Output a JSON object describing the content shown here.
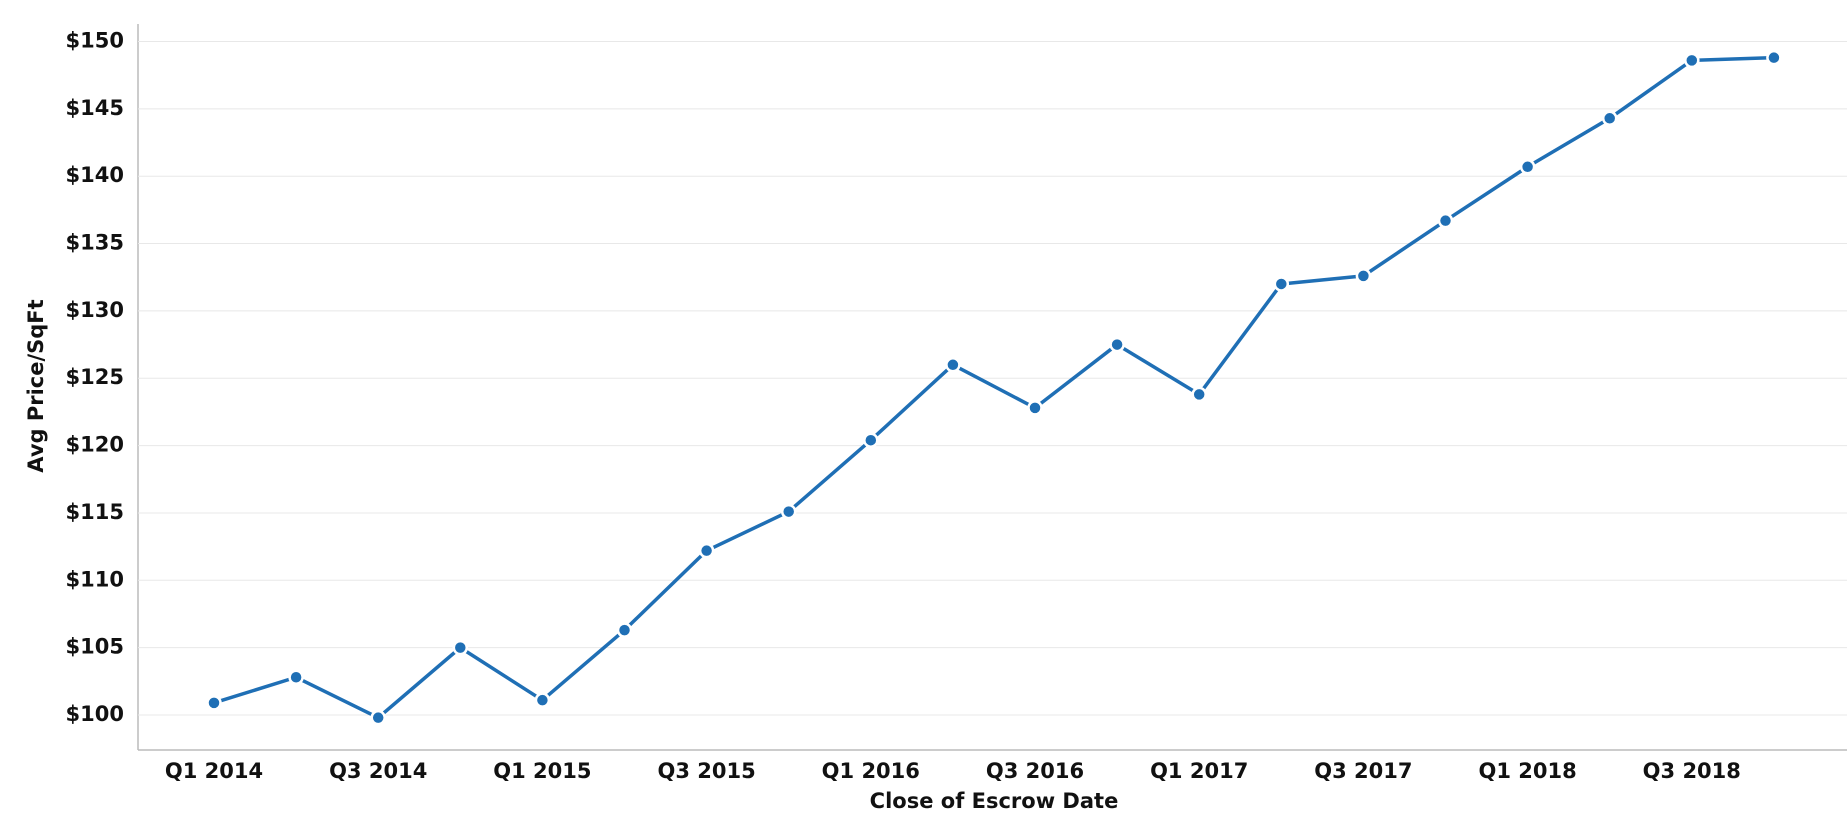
{
  "chart_data": {
    "type": "line",
    "x_label": "Close of Escrow Date",
    "y_label": "Avg Price/SqFt",
    "categories": [
      "Q1 2014",
      null,
      "Q3 2014",
      null,
      "Q1 2015",
      null,
      "Q3 2015",
      null,
      "Q1 2016",
      null,
      "Q3 2016",
      null,
      "Q1 2017",
      null,
      "Q3 2017",
      null,
      "Q1 2018",
      null,
      "Q3 2018",
      null
    ],
    "series": [
      {
        "color": "#1f6fb5",
        "values": [
          100.9,
          102.8,
          99.8,
          105.0,
          101.1,
          106.3,
          112.2,
          115.1,
          120.4,
          126.0,
          122.8,
          127.5,
          123.8,
          132.0,
          132.6,
          136.7,
          140.7,
          144.3,
          148.6,
          148.8
        ]
      }
    ],
    "ylim": [
      97.4,
      151.3
    ],
    "yticks": [
      {
        "value": 100,
        "label": "$100"
      },
      {
        "value": 105,
        "label": "$105"
      },
      {
        "value": 110,
        "label": "$110"
      },
      {
        "value": 115,
        "label": "$115"
      },
      {
        "value": 120,
        "label": "$120"
      },
      {
        "value": 125,
        "label": "$125"
      },
      {
        "value": 130,
        "label": "$130"
      },
      {
        "value": 135,
        "label": "$135"
      },
      {
        "value": 140,
        "label": "$140"
      },
      {
        "value": 145,
        "label": "$145"
      },
      {
        "value": 150,
        "label": "$150"
      }
    ],
    "grid": true
  }
}
